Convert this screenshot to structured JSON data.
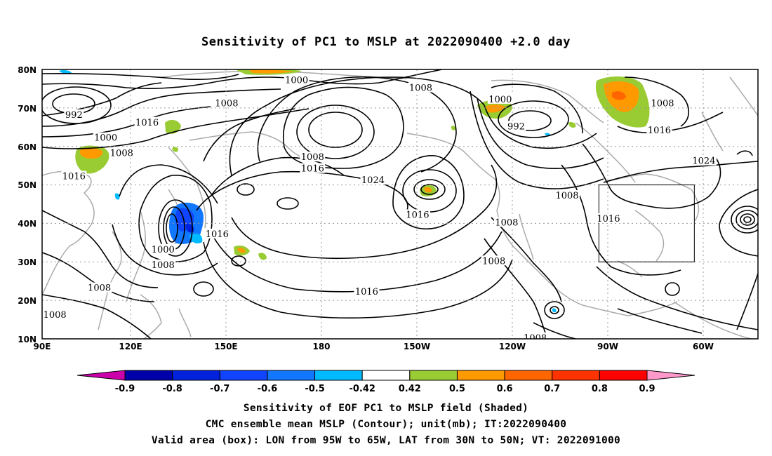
{
  "title": "Sensitivity of PC1 to MSLP at 2022090400 +2.0 day",
  "axes": {
    "lat_labels": [
      "80N",
      "70N",
      "60N",
      "50N",
      "40N",
      "30N",
      "20N",
      "10N"
    ],
    "lon_labels": [
      "90E",
      "120E",
      "150E",
      "180",
      "150W",
      "120W",
      "90W",
      "60W"
    ]
  },
  "valid_box": {
    "lon_min": -95,
    "lon_max": -65,
    "lat_min": 30,
    "lat_max": 50
  },
  "isobar_labels": [
    {
      "text": "1000",
      "lon": 170,
      "lat": 77
    },
    {
      "text": "1008",
      "lon": -151,
      "lat": 75
    },
    {
      "text": "1000",
      "lon": -126,
      "lat": 72
    },
    {
      "text": "1008",
      "lon": -75,
      "lat": 71
    },
    {
      "text": "992",
      "lon": 100,
      "lat": 68
    },
    {
      "text": "1008",
      "lon": 148,
      "lat": 71
    },
    {
      "text": "1016",
      "lon": 123,
      "lat": 66
    },
    {
      "text": "992",
      "lon": -121,
      "lat": 65
    },
    {
      "text": "1016",
      "lon": -76,
      "lat": 64
    },
    {
      "text": "1000",
      "lon": 110,
      "lat": 62
    },
    {
      "text": "1008",
      "lon": 115,
      "lat": 58
    },
    {
      "text": "1008",
      "lon": 175,
      "lat": 57
    },
    {
      "text": "1016",
      "lon": 175,
      "lat": 54
    },
    {
      "text": "1024",
      "lon": -62,
      "lat": 56
    },
    {
      "text": "1016",
      "lon": 100,
      "lat": 52
    },
    {
      "text": "1024",
      "lon": -166,
      "lat": 51
    },
    {
      "text": "1008",
      "lon": -105,
      "lat": 47
    },
    {
      "text": "1016",
      "lon": -152,
      "lat": 42
    },
    {
      "text": "1016",
      "lon": 145,
      "lat": 37
    },
    {
      "text": "1008",
      "lon": -124,
      "lat": 40
    },
    {
      "text": "1016",
      "lon": -92,
      "lat": 41
    },
    {
      "text": "1000",
      "lon": 128,
      "lat": 33
    },
    {
      "text": "1008",
      "lon": 128,
      "lat": 29
    },
    {
      "text": "1008",
      "lon": -128,
      "lat": 30
    },
    {
      "text": "1008",
      "lon": 108,
      "lat": 23
    },
    {
      "text": "1016",
      "lon": -168,
      "lat": 22
    },
    {
      "text": "1008",
      "lon": 94,
      "lat": 16
    },
    {
      "text": "1008",
      "lon": -115,
      "lat": 10
    }
  ],
  "colorbar": {
    "tick_labels": [
      "-0.9",
      "-0.8",
      "-0.7",
      "-0.6",
      "-0.5",
      "-0.42",
      "0.42",
      "0.5",
      "0.6",
      "0.7",
      "0.8",
      "0.9"
    ],
    "colors": [
      "#cc00aa",
      "#0000aa",
      "#0022dd",
      "#1144ff",
      "#1177ff",
      "#00bbff",
      "#ffffff",
      "#99cc33",
      "#ff9900",
      "#ff6600",
      "#ff3300",
      "#ff0000",
      "#ff99cc"
    ]
  },
  "captions": [
    "Sensitivity of EOF PC1 to MSLP field (Shaded)",
    "CMC ensemble mean MSLP (Contour); unit(mb); IT:2022090400",
    "Valid area (box): LON from 95W to 65W, LAT from 30N to 50N; VT: 2022091000"
  ]
}
